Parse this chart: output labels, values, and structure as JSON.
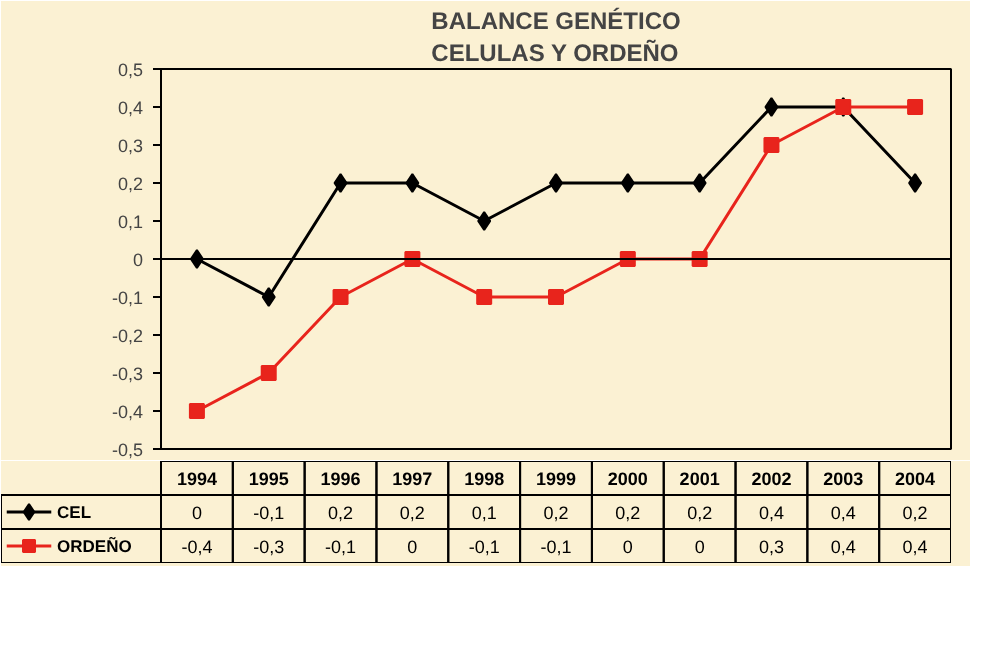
{
  "chart_data": {
    "type": "line",
    "title": "BALANCE GENÉTICO\nCELULAS Y ORDEÑO",
    "categories": [
      "1994",
      "1995",
      "1996",
      "1997",
      "1998",
      "1999",
      "2000",
      "2001",
      "2002",
      "2003",
      "2004"
    ],
    "series": [
      {
        "name": "CEL",
        "color": "#000000",
        "marker": "diamond",
        "values": [
          0,
          -0.1,
          0.2,
          0.2,
          0.1,
          0.2,
          0.2,
          0.2,
          0.4,
          0.4,
          0.2
        ],
        "value_labels": [
          "0",
          "-0,1",
          "0,2",
          "0,2",
          "0,1",
          "0,2",
          "0,2",
          "0,2",
          "0,4",
          "0,4",
          "0,2"
        ]
      },
      {
        "name": "ORDEÑO",
        "color": "#e8241c",
        "marker": "square",
        "values": [
          -0.4,
          -0.3,
          -0.1,
          0,
          -0.1,
          -0.1,
          0,
          0,
          0.3,
          0.4,
          0.4
        ],
        "value_labels": [
          "-0,4",
          "-0,3",
          "-0,1",
          "0",
          "-0,1",
          "-0,1",
          "0",
          "0",
          "0,3",
          "0,4",
          "0,4"
        ]
      }
    ],
    "ylim": [
      -0.5,
      0.5
    ],
    "yticks": [
      {
        "value": -0.5,
        "label": "-0,5"
      },
      {
        "value": -0.4,
        "label": "-0,4"
      },
      {
        "value": -0.3,
        "label": "-0,3"
      },
      {
        "value": -0.2,
        "label": "-0,2"
      },
      {
        "value": -0.1,
        "label": "-0,1"
      },
      0,
      {
        "value": 0.1,
        "label": "0,1"
      },
      {
        "value": 0.2,
        "label": "0,2"
      },
      {
        "value": 0.3,
        "label": "0,3"
      },
      {
        "value": 0.4,
        "label": "0,4"
      },
      {
        "value": 0.5,
        "label": "0,5"
      }
    ],
    "ref_lines": [
      {
        "axis": "y",
        "value": 0,
        "color": "#000000"
      }
    ],
    "grid": false,
    "legend": "bottom",
    "line_style": "solid"
  }
}
